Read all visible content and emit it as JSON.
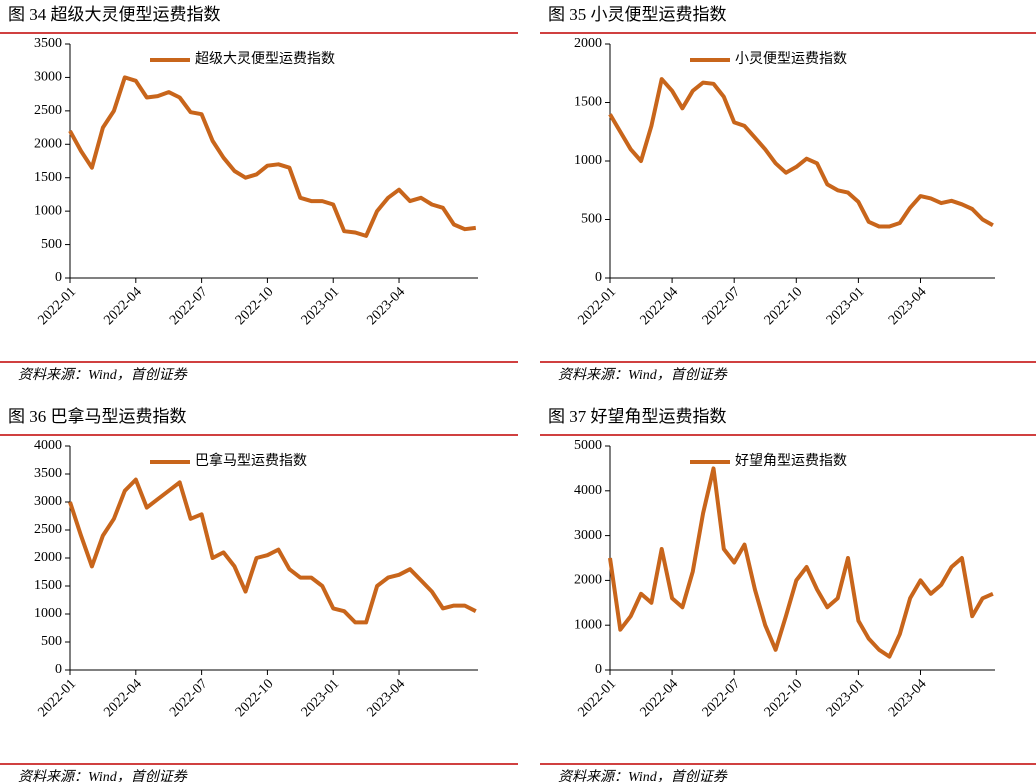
{
  "chart_data": [
    {
      "type": "line",
      "title": "图 34 超级大灵便型运费指数",
      "source": "资料来源：Wind，首创证券",
      "x": [
        0,
        0.5,
        1,
        1.5,
        2,
        2.5,
        3,
        3.5,
        4,
        4.5,
        5,
        5.5,
        6,
        6.5,
        7,
        7.5,
        8,
        8.5,
        9,
        9.5,
        10,
        10.5,
        11,
        11.5,
        12,
        12.5,
        13,
        13.5,
        14,
        14.5,
        15,
        15.5,
        16,
        16.5,
        17,
        17.5,
        18,
        18.5
      ],
      "xlim": [
        0,
        18.6
      ],
      "xticks": [
        {
          "value": 0,
          "label": "2022-01"
        },
        {
          "value": 3,
          "label": "2022-04"
        },
        {
          "value": 6,
          "label": "2022-07"
        },
        {
          "value": 9,
          "label": "2022-10"
        },
        {
          "value": 12,
          "label": "2023-01"
        },
        {
          "value": 15,
          "label": "2023-04"
        }
      ],
      "ylim": [
        0,
        3500
      ],
      "yticks": [
        0,
        500,
        1000,
        1500,
        2000,
        2500,
        3000,
        3500
      ],
      "series": [
        {
          "name": "超级大灵便型运费指数",
          "color": "#c8651b",
          "values": [
            2200,
            1900,
            1650,
            2250,
            2500,
            3000,
            2950,
            2700,
            2720,
            2780,
            2700,
            2480,
            2450,
            2050,
            1800,
            1600,
            1500,
            1550,
            1680,
            1700,
            1650,
            1200,
            1150,
            1150,
            1100,
            700,
            680,
            630,
            1000,
            1200,
            1320,
            1150,
            1200,
            1100,
            1050,
            800,
            730,
            750
          ]
        }
      ]
    },
    {
      "type": "line",
      "title": "图 35 小灵便型运费指数",
      "source": "资料来源：Wind，首创证券",
      "x": [
        0,
        0.5,
        1,
        1.5,
        2,
        2.5,
        3,
        3.5,
        4,
        4.5,
        5,
        5.5,
        6,
        6.5,
        7,
        7.5,
        8,
        8.5,
        9,
        9.5,
        10,
        10.5,
        11,
        11.5,
        12,
        12.5,
        13,
        13.5,
        14,
        14.5,
        15,
        15.5,
        16,
        16.5,
        17,
        17.5,
        18,
        18.5
      ],
      "xlim": [
        0,
        18.6
      ],
      "xticks": [
        {
          "value": 0,
          "label": "2022-01"
        },
        {
          "value": 3,
          "label": "2022-04"
        },
        {
          "value": 6,
          "label": "2022-07"
        },
        {
          "value": 9,
          "label": "2022-10"
        },
        {
          "value": 12,
          "label": "2023-01"
        },
        {
          "value": 15,
          "label": "2023-04"
        }
      ],
      "ylim": [
        0,
        2000
      ],
      "yticks": [
        0,
        500,
        1000,
        1500,
        2000
      ],
      "series": [
        {
          "name": "小灵便型运费指数",
          "color": "#c8651b",
          "values": [
            1400,
            1250,
            1100,
            1000,
            1300,
            1700,
            1600,
            1450,
            1600,
            1670,
            1660,
            1550,
            1330,
            1300,
            1200,
            1100,
            980,
            900,
            950,
            1020,
            980,
            800,
            750,
            730,
            650,
            480,
            440,
            440,
            470,
            600,
            700,
            680,
            640,
            660,
            630,
            590,
            500,
            450
          ]
        }
      ]
    },
    {
      "type": "line",
      "title": "图 36 巴拿马型运费指数",
      "source": "资料来源：Wind，首创证券",
      "x": [
        0,
        0.5,
        1,
        1.5,
        2,
        2.5,
        3,
        3.5,
        4,
        4.5,
        5,
        5.5,
        6,
        6.5,
        7,
        7.5,
        8,
        8.5,
        9,
        9.5,
        10,
        10.5,
        11,
        11.5,
        12,
        12.5,
        13,
        13.5,
        14,
        14.5,
        15,
        15.5,
        16,
        16.5,
        17,
        17.5,
        18,
        18.5
      ],
      "xlim": [
        0,
        18.6
      ],
      "xticks": [
        {
          "value": 0,
          "label": "2022-01"
        },
        {
          "value": 3,
          "label": "2022-04"
        },
        {
          "value": 6,
          "label": "2022-07"
        },
        {
          "value": 9,
          "label": "2022-10"
        },
        {
          "value": 12,
          "label": "2023-01"
        },
        {
          "value": 15,
          "label": "2023-04"
        }
      ],
      "ylim": [
        0,
        4000
      ],
      "yticks": [
        0,
        500,
        1000,
        1500,
        2000,
        2500,
        3000,
        3500,
        4000
      ],
      "series": [
        {
          "name": "巴拿马型运费指数",
          "color": "#c8651b",
          "values": [
            3000,
            2400,
            1850,
            2400,
            2700,
            3200,
            3400,
            2900,
            3050,
            3200,
            3350,
            2700,
            2780,
            2000,
            2100,
            1850,
            1400,
            2000,
            2050,
            2150,
            1800,
            1650,
            1650,
            1500,
            1100,
            1050,
            850,
            850,
            1500,
            1650,
            1700,
            1800,
            1600,
            1400,
            1100,
            1150,
            1150,
            1050
          ]
        }
      ]
    },
    {
      "type": "line",
      "title": "图 37 好望角型运费指数",
      "source": "资料来源：Wind，首创证券",
      "x": [
        0,
        0.5,
        1,
        1.5,
        2,
        2.5,
        3,
        3.5,
        4,
        4.5,
        5,
        5.5,
        6,
        6.5,
        7,
        7.5,
        8,
        8.5,
        9,
        9.5,
        10,
        10.5,
        11,
        11.5,
        12,
        12.5,
        13,
        13.5,
        14,
        14.5,
        15,
        15.5,
        16,
        16.5,
        17,
        17.5,
        18,
        18.5
      ],
      "xlim": [
        0,
        18.6
      ],
      "xticks": [
        {
          "value": 0,
          "label": "2022-01"
        },
        {
          "value": 3,
          "label": "2022-04"
        },
        {
          "value": 6,
          "label": "2022-07"
        },
        {
          "value": 9,
          "label": "2022-10"
        },
        {
          "value": 12,
          "label": "2023-01"
        },
        {
          "value": 15,
          "label": "2023-04"
        }
      ],
      "ylim": [
        0,
        5000
      ],
      "yticks": [
        0,
        1000,
        2000,
        3000,
        4000,
        5000
      ],
      "series": [
        {
          "name": "好望角型运费指数",
          "color": "#c8651b",
          "values": [
            2500,
            900,
            1200,
            1700,
            1500,
            2700,
            1600,
            1400,
            2200,
            3500,
            4500,
            2700,
            2400,
            2800,
            1800,
            1000,
            450,
            1200,
            2000,
            2300,
            1800,
            1400,
            1600,
            2500,
            1100,
            700,
            450,
            300,
            800,
            1600,
            2000,
            1700,
            1900,
            2300,
            2500,
            1200,
            1600,
            1700
          ]
        }
      ]
    }
  ]
}
